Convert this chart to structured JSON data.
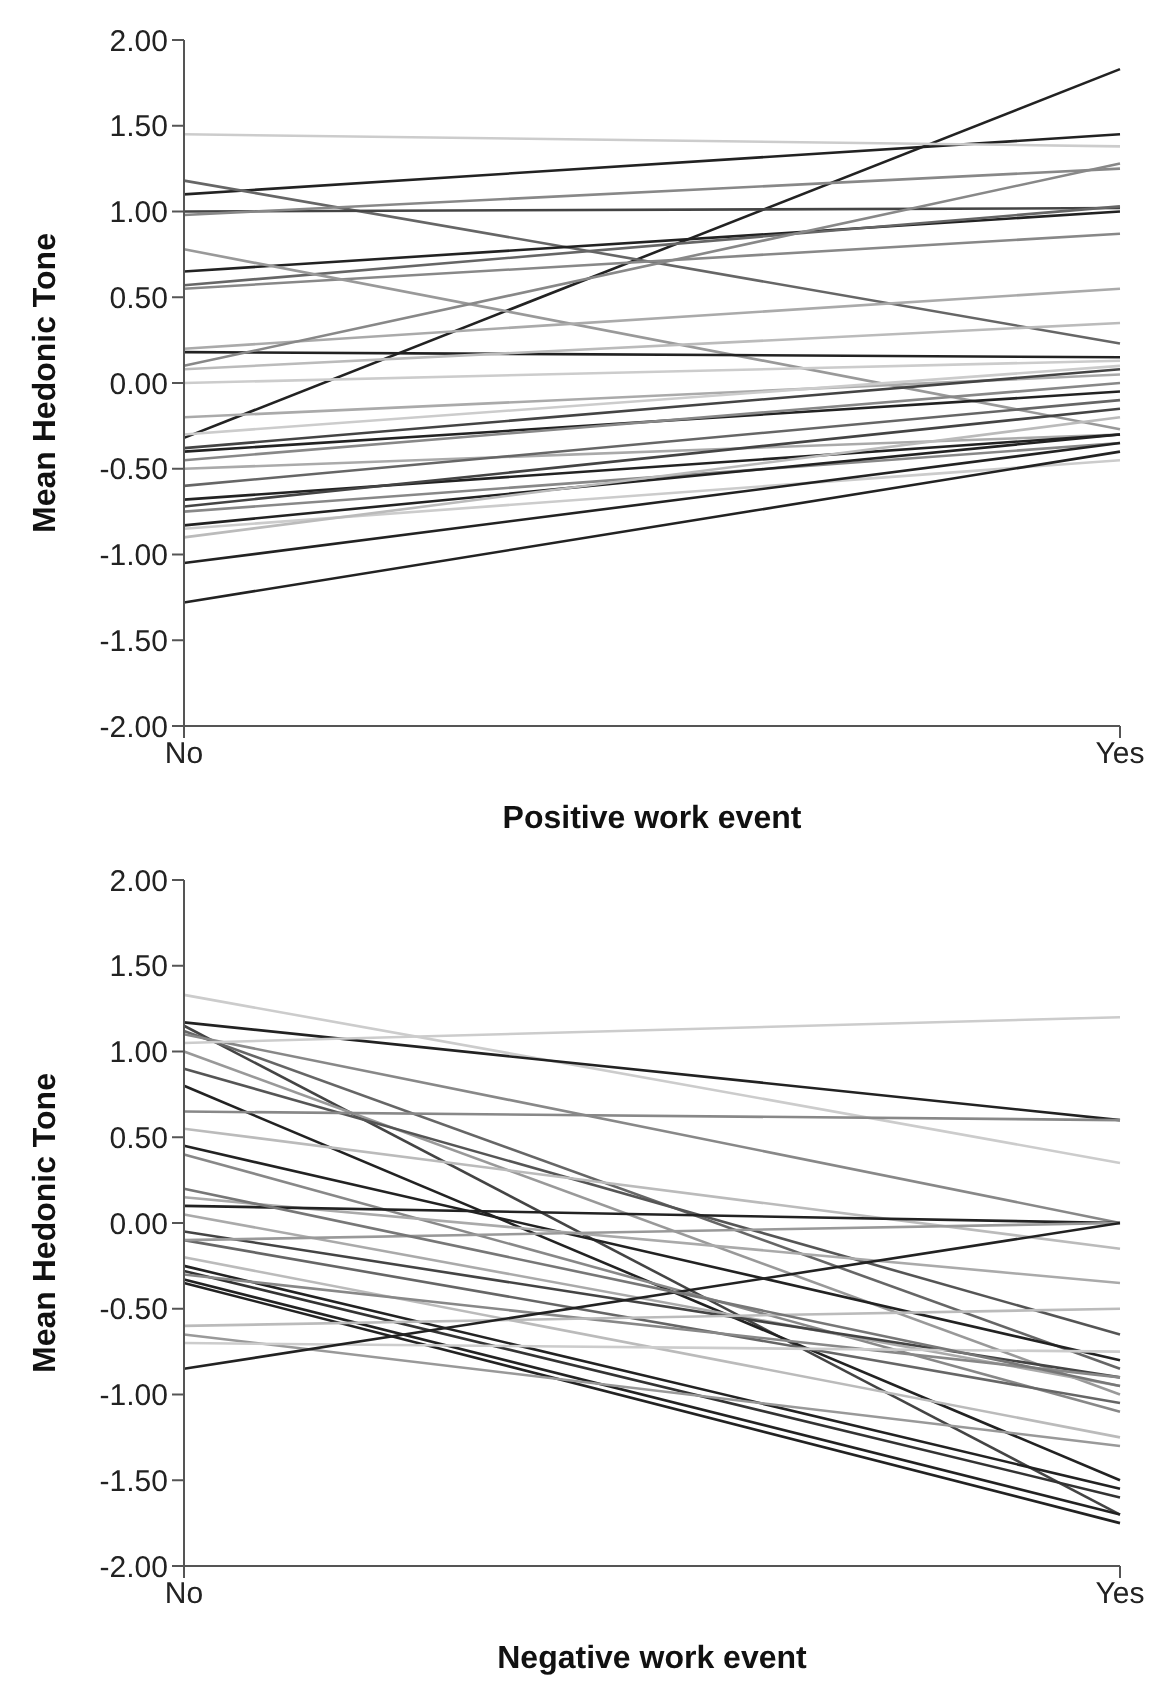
{
  "chart_data": [
    {
      "type": "line",
      "xlabel": "Positive work event",
      "ylabel": "Mean Hedonic Tone",
      "categories": [
        "No",
        "Yes"
      ],
      "ylim": [
        -2,
        2
      ],
      "yticks": [
        {
          "value": -2,
          "label": "-2.00"
        },
        {
          "value": -1.5,
          "label": "-1.50"
        },
        {
          "value": -1,
          "label": "-1.00"
        },
        {
          "value": -0.5,
          "label": "-0.50"
        },
        {
          "value": 0,
          "label": "0.00"
        },
        {
          "value": 0.5,
          "label": "0.50"
        },
        {
          "value": 1,
          "label": "1.00"
        },
        {
          "value": 1.5,
          "label": "1.50"
        },
        {
          "value": 2,
          "label": "2.00"
        }
      ],
      "series": [
        {
          "color": "#222222",
          "values": [
            1.1,
            1.45
          ]
        },
        {
          "color": "#222222",
          "values": [
            -0.32,
            1.83
          ]
        },
        {
          "color": "#666666",
          "values": [
            1.18,
            0.23
          ]
        },
        {
          "color": "#cccccc",
          "values": [
            1.45,
            1.38
          ]
        },
        {
          "color": "#444444",
          "values": [
            1.0,
            1.02
          ]
        },
        {
          "color": "#888888",
          "values": [
            0.98,
            1.25
          ]
        },
        {
          "color": "#222222",
          "values": [
            0.65,
            1.0
          ]
        },
        {
          "color": "#666666",
          "values": [
            0.57,
            1.03
          ]
        },
        {
          "color": "#888888",
          "values": [
            0.55,
            0.87
          ]
        },
        {
          "color": "#999999",
          "values": [
            0.78,
            -0.27
          ]
        },
        {
          "color": "#aaaaaa",
          "values": [
            0.2,
            0.55
          ]
        },
        {
          "color": "#222222",
          "values": [
            0.18,
            0.15
          ]
        },
        {
          "color": "#888888",
          "values": [
            0.1,
            1.28
          ]
        },
        {
          "color": "#bbbbbb",
          "values": [
            0.08,
            0.35
          ]
        },
        {
          "color": "#cccccc",
          "values": [
            0.0,
            0.13
          ]
        },
        {
          "color": "#aaaaaa",
          "values": [
            -0.2,
            0.05
          ]
        },
        {
          "color": "#cccccc",
          "values": [
            -0.3,
            0.1
          ]
        },
        {
          "color": "#444444",
          "values": [
            -0.38,
            0.08
          ]
        },
        {
          "color": "#222222",
          "values": [
            -0.4,
            -0.05
          ]
        },
        {
          "color": "#888888",
          "values": [
            -0.45,
            0.0
          ]
        },
        {
          "color": "#aaaaaa",
          "values": [
            -0.5,
            -0.3
          ]
        },
        {
          "color": "#666666",
          "values": [
            -0.6,
            -0.1
          ]
        },
        {
          "color": "#222222",
          "values": [
            -0.68,
            -0.3
          ]
        },
        {
          "color": "#444444",
          "values": [
            -0.72,
            -0.15
          ]
        },
        {
          "color": "#888888",
          "values": [
            -0.75,
            -0.35
          ]
        },
        {
          "color": "#222222",
          "values": [
            -0.83,
            -0.3
          ]
        },
        {
          "color": "#cccccc",
          "values": [
            -0.85,
            -0.45
          ]
        },
        {
          "color": "#bbbbbb",
          "values": [
            -0.9,
            -0.2
          ]
        },
        {
          "color": "#222222",
          "values": [
            -1.05,
            -0.35
          ]
        },
        {
          "color": "#222222",
          "values": [
            -1.28,
            -0.4
          ]
        }
      ]
    },
    {
      "type": "line",
      "xlabel": "Negative work event",
      "ylabel": "Mean Hedonic Tone",
      "categories": [
        "No",
        "Yes"
      ],
      "ylim": [
        -2,
        2
      ],
      "yticks": [
        {
          "value": -2,
          "label": "-2.00"
        },
        {
          "value": -1.5,
          "label": "-1.50"
        },
        {
          "value": -1,
          "label": "-1.00"
        },
        {
          "value": -0.5,
          "label": "-0.50"
        },
        {
          "value": 0,
          "label": "0.00"
        },
        {
          "value": 0.5,
          "label": "0.50"
        },
        {
          "value": 1,
          "label": "1.00"
        },
        {
          "value": 1.5,
          "label": "1.50"
        },
        {
          "value": 2,
          "label": "2.00"
        }
      ],
      "series": [
        {
          "color": "#cccccc",
          "values": [
            1.33,
            0.35
          ]
        },
        {
          "color": "#222222",
          "values": [
            1.17,
            0.6
          ]
        },
        {
          "color": "#444444",
          "values": [
            1.15,
            -1.7
          ]
        },
        {
          "color": "#666666",
          "values": [
            1.12,
            -0.85
          ]
        },
        {
          "color": "#888888",
          "values": [
            1.1,
            0.0
          ]
        },
        {
          "color": "#cccccc",
          "values": [
            1.05,
            1.2
          ]
        },
        {
          "color": "#999999",
          "values": [
            1.0,
            -1.0
          ]
        },
        {
          "color": "#555555",
          "values": [
            0.9,
            -0.65
          ]
        },
        {
          "color": "#222222",
          "values": [
            0.8,
            -1.5
          ]
        },
        {
          "color": "#888888",
          "values": [
            0.65,
            0.6
          ]
        },
        {
          "color": "#bbbbbb",
          "values": [
            0.55,
            -0.15
          ]
        },
        {
          "color": "#222222",
          "values": [
            0.45,
            -0.8
          ]
        },
        {
          "color": "#888888",
          "values": [
            0.4,
            -1.1
          ]
        },
        {
          "color": "#aaaaaa",
          "values": [
            0.15,
            -0.35
          ]
        },
        {
          "color": "#222222",
          "values": [
            0.1,
            0.0
          ]
        },
        {
          "color": "#aaaaaa",
          "values": [
            0.05,
            -0.95
          ]
        },
        {
          "color": "#444444",
          "values": [
            -0.05,
            -0.9
          ]
        },
        {
          "color": "#666666",
          "values": [
            -0.1,
            -1.05
          ]
        },
        {
          "color": "#999999",
          "values": [
            -0.1,
            0.0
          ]
        },
        {
          "color": "#bbbbbb",
          "values": [
            -0.2,
            -1.25
          ]
        },
        {
          "color": "#222222",
          "values": [
            -0.25,
            -1.55
          ]
        },
        {
          "color": "#333333",
          "values": [
            -0.28,
            -1.6
          ]
        },
        {
          "color": "#888888",
          "values": [
            -0.3,
            -0.9
          ]
        },
        {
          "color": "#222222",
          "values": [
            -0.33,
            -1.7
          ]
        },
        {
          "color": "#222222",
          "values": [
            -0.35,
            -1.75
          ]
        },
        {
          "color": "#bbbbbb",
          "values": [
            -0.6,
            -0.5
          ]
        },
        {
          "color": "#999999",
          "values": [
            -0.65,
            -1.3
          ]
        },
        {
          "color": "#cccccc",
          "values": [
            -0.7,
            -0.75
          ]
        },
        {
          "color": "#222222",
          "values": [
            -0.85,
            0.0
          ]
        },
        {
          "color": "#777777",
          "values": [
            0.2,
            -0.95
          ]
        }
      ]
    }
  ]
}
